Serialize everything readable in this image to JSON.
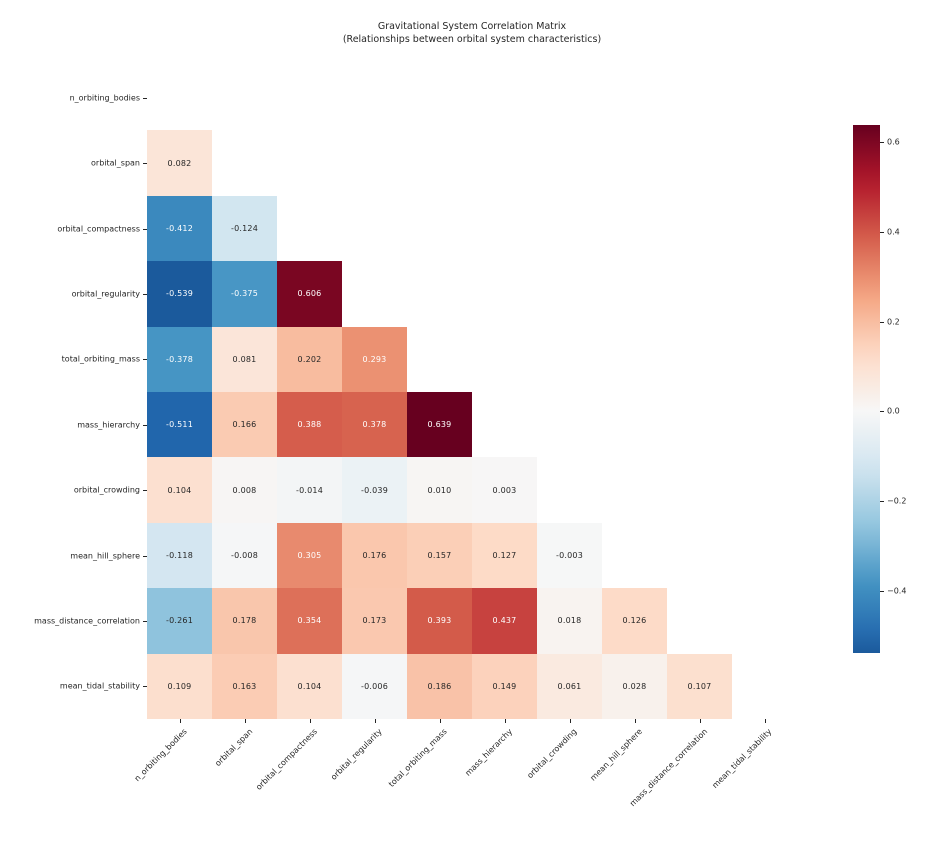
{
  "figure": {
    "background": "#ffffff",
    "title": "Gravitational System Correlation Matrix",
    "subtitle": "(Relationships between orbital system characteristics)"
  },
  "chart_data": {
    "type": "heatmap",
    "title": "Gravitational System Correlation Matrix",
    "subtitle": "(Relationships between orbital system characteristics)",
    "labels": [
      "n_orbiting_bodies",
      "orbital_span",
      "orbital_compactness",
      "orbital_regularity",
      "total_orbiting_mass",
      "mass_hierarchy",
      "orbital_crowding",
      "mean_hill_sphere",
      "mass_distance_correlation",
      "mean_tidal_stability"
    ],
    "mask": "upper-triangle-including-diagonal",
    "rows": [
      [],
      [
        0.082
      ],
      [
        -0.412,
        -0.124
      ],
      [
        -0.539,
        -0.375,
        0.606
      ],
      [
        -0.378,
        0.081,
        0.202,
        0.293
      ],
      [
        -0.511,
        0.166,
        0.388,
        0.378,
        0.639
      ],
      [
        0.104,
        0.008,
        -0.014,
        -0.039,
        0.01,
        0.003
      ],
      [
        -0.118,
        -0.008,
        0.305,
        0.176,
        0.157,
        0.127,
        -0.003
      ],
      [
        -0.261,
        0.178,
        0.354,
        0.173,
        0.393,
        0.437,
        0.018,
        0.126
      ],
      [
        0.109,
        0.163,
        0.104,
        -0.006,
        0.186,
        0.149,
        0.061,
        0.028,
        0.107
      ]
    ],
    "annot_format": ".3f",
    "colormap": {
      "name": "RdBu_r",
      "stops": [
        "#053061",
        "#2166ac",
        "#4393c3",
        "#92c5de",
        "#d1e5f0",
        "#f7f7f7",
        "#fddbc7",
        "#f4a582",
        "#d6604d",
        "#b2182b",
        "#67001f"
      ]
    },
    "norm": {
      "vmin": -0.639,
      "vmax": 0.639,
      "center": 0
    },
    "colorbar": {
      "position": "right",
      "value_top": 0.639,
      "value_bottom": -0.539,
      "tick_values": [
        0.6,
        0.4,
        0.2,
        0.0,
        -0.2,
        -0.4
      ],
      "tick_labels": [
        "0.6",
        "0.4",
        "0.2",
        "0.0",
        "−0.2",
        "−0.4"
      ]
    },
    "annot_text_colors": {
      "light": "#ffffff",
      "dark": "#262626"
    },
    "grid": false,
    "x_tick_rotation": 45
  }
}
